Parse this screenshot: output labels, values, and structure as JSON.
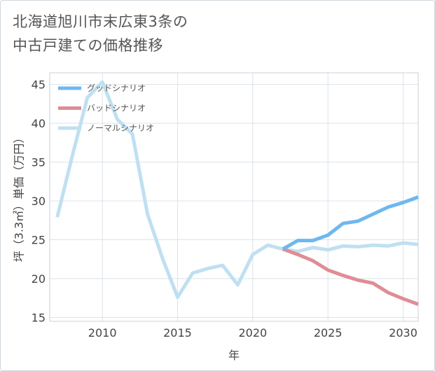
{
  "title_lines": [
    "北海道旭川市末広東3条の",
    "中古戸建ての価格推移"
  ],
  "chart_data": {
    "type": "line",
    "xlabel": "年",
    "ylabel": "坪（3.3㎡）単価（万円）",
    "xlim": [
      2006.5,
      2031
    ],
    "ylim": [
      14.5,
      46.5
    ],
    "x_ticks": [
      2010,
      2015,
      2020,
      2025,
      2030
    ],
    "y_ticks": [
      15,
      20,
      25,
      30,
      35,
      40,
      45
    ],
    "grid": true,
    "legend_position": "top-left",
    "series": [
      {
        "name": "グッドシナリオ",
        "color": "#6db8ee",
        "x": [
          2022,
          2023,
          2024,
          2025,
          2026,
          2027,
          2028,
          2029,
          2030,
          2031
        ],
        "values": [
          23.8,
          24.9,
          24.9,
          25.6,
          27.1,
          27.4,
          28.3,
          29.2,
          29.8,
          30.5
        ]
      },
      {
        "name": "バッドシナリオ",
        "color": "#df8d96",
        "x": [
          2022,
          2023,
          2024,
          2025,
          2026,
          2027,
          2028,
          2029,
          2030,
          2031
        ],
        "values": [
          23.8,
          23.1,
          22.3,
          21.1,
          20.4,
          19.8,
          19.4,
          18.2,
          17.4,
          16.7
        ]
      },
      {
        "name": "ノーマルシナリオ",
        "color": "#bfe0f1",
        "x": [
          2007,
          2008,
          2009,
          2010,
          2011,
          2012,
          2013,
          2014,
          2015,
          2016,
          2017,
          2018,
          2019,
          2020,
          2021,
          2022,
          2023,
          2024,
          2025,
          2026,
          2027,
          2028,
          2029,
          2030,
          2031
        ],
        "values": [
          27.9,
          35.8,
          43.3,
          45.3,
          40.5,
          38.6,
          28.3,
          22.6,
          17.6,
          20.7,
          21.3,
          21.7,
          19.2,
          23.1,
          24.3,
          23.8,
          23.5,
          24.0,
          23.7,
          24.2,
          24.1,
          24.3,
          24.2,
          24.6,
          24.4
        ]
      }
    ]
  }
}
